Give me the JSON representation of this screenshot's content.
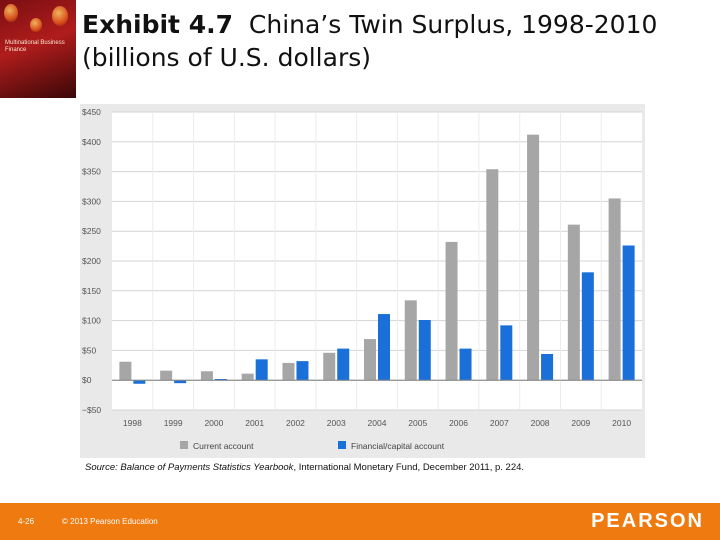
{
  "slide": {
    "title_bold": "Exhibit 4.7",
    "title_rest": "China’s Twin Surplus, 1998-2010 (billions of U.S. dollars)",
    "cover_title": "Multinational Business Finance",
    "source_prefix": "Source:",
    "source_italic": "Balance of Payments Statistics Yearbook",
    "source_rest": ", International Monetary Fund, December 2011, p. 224.",
    "slide_number": "4-26",
    "copyright": "© 2013 Pearson Education",
    "publisher_logo": "PEARSON"
  },
  "colors": {
    "accent_orange": "#ef7a10",
    "current_account": "#a6a6a7",
    "financial_account": "#1b6fd8",
    "panel_bg": "#e9e9ea"
  },
  "chart_data": {
    "type": "bar",
    "title": "",
    "xlabel": "",
    "ylabel": "",
    "categories": [
      "1998",
      "1999",
      "2000",
      "2001",
      "2002",
      "2003",
      "2004",
      "2005",
      "2006",
      "2007",
      "2008",
      "2009",
      "2010"
    ],
    "series": [
      {
        "name": "Current account",
        "values": [
          31,
          16,
          15,
          11,
          29,
          46,
          69,
          134,
          232,
          354,
          412,
          261,
          305
        ]
      },
      {
        "name": "Financial/capital account",
        "values": [
          -6,
          -5,
          2,
          35,
          32,
          53,
          111,
          101,
          53,
          92,
          44,
          181,
          226
        ]
      }
    ],
    "ylim": [
      -50,
      450
    ],
    "yticks": [
      -50,
      0,
      50,
      100,
      150,
      200,
      250,
      300,
      350,
      400,
      450
    ],
    "ytick_labels": [
      "−$50",
      "$0",
      "$50",
      "$100",
      "$150",
      "$200",
      "$250",
      "$300",
      "$350",
      "$400",
      "$450"
    ],
    "grid": true,
    "legend": "bottom"
  }
}
